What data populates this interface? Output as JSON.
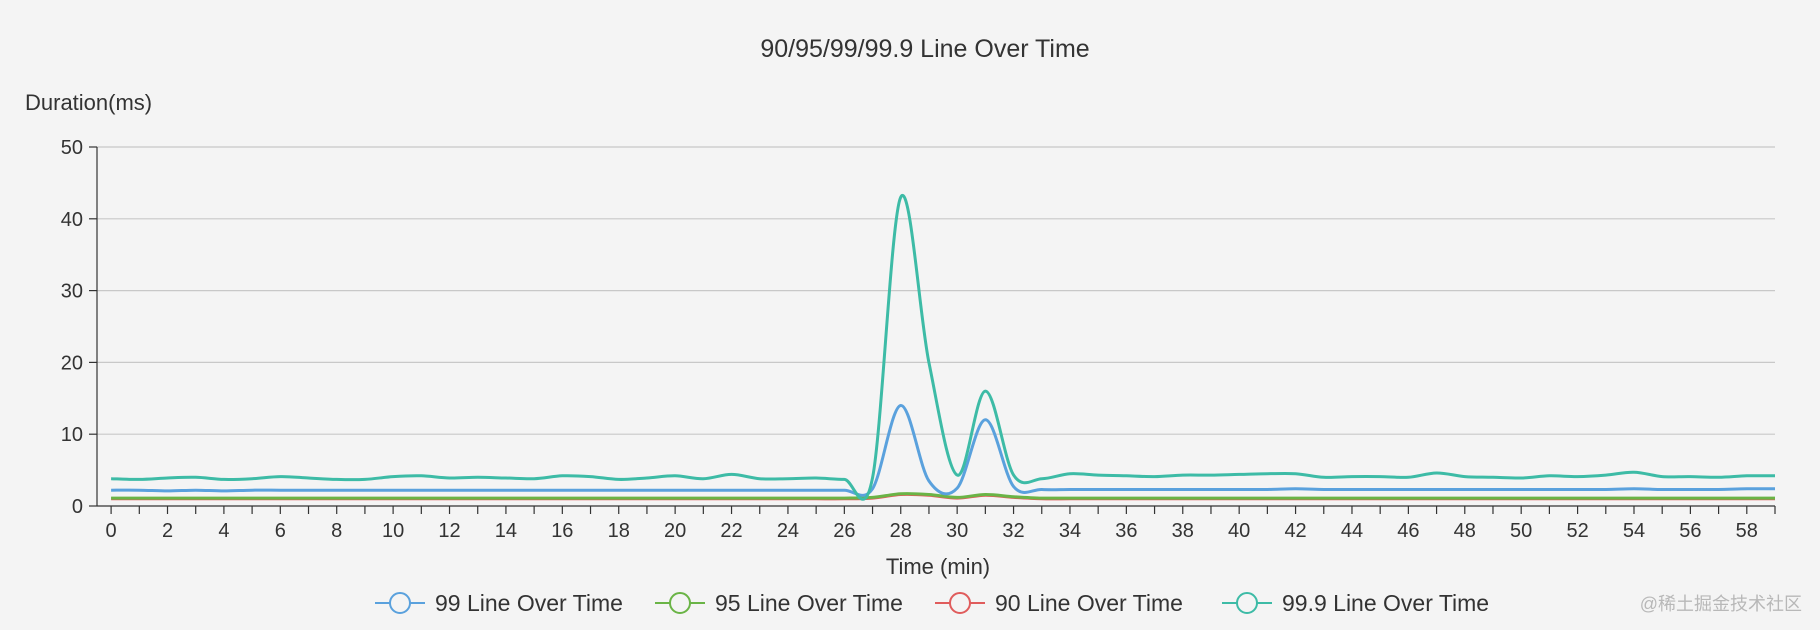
{
  "chart_data": {
    "type": "line",
    "title": "90/95/99/99.9 Line Over Time",
    "xlabel": "Time (min)",
    "ylabel": "Duration(ms)",
    "ylim": [
      0,
      50
    ],
    "yticks": [
      0,
      10,
      20,
      30,
      40,
      50
    ],
    "xlim": [
      -0.5,
      59
    ],
    "xticks": [
      0,
      2,
      4,
      6,
      8,
      10,
      12,
      14,
      16,
      18,
      20,
      22,
      24,
      26,
      28,
      30,
      32,
      34,
      36,
      38,
      40,
      42,
      44,
      46,
      48,
      50,
      52,
      54,
      56,
      58
    ],
    "grid": true,
    "legend_position": "bottom",
    "x": [
      0,
      1,
      2,
      3,
      4,
      5,
      6,
      7,
      8,
      9,
      10,
      11,
      12,
      13,
      14,
      15,
      16,
      17,
      18,
      19,
      20,
      21,
      22,
      23,
      24,
      25,
      26,
      27,
      28,
      29,
      30,
      31,
      32,
      33,
      34,
      35,
      36,
      37,
      38,
      39,
      40,
      41,
      42,
      43,
      44,
      45,
      46,
      47,
      48,
      49,
      50,
      51,
      52,
      53,
      54,
      55,
      56,
      57,
      58,
      59
    ],
    "series": [
      {
        "name": "99 Line Over Time",
        "color": "#5aa1dd",
        "values": [
          2.2,
          2.2,
          2.1,
          2.2,
          2.1,
          2.2,
          2.2,
          2.2,
          2.2,
          2.2,
          2.2,
          2.2,
          2.2,
          2.2,
          2.2,
          2.2,
          2.2,
          2.2,
          2.2,
          2.2,
          2.2,
          2.2,
          2.2,
          2.2,
          2.2,
          2.2,
          2.2,
          2.4,
          14.0,
          3.5,
          2.5,
          12.0,
          2.7,
          2.3,
          2.3,
          2.3,
          2.3,
          2.3,
          2.3,
          2.3,
          2.3,
          2.3,
          2.4,
          2.3,
          2.3,
          2.3,
          2.3,
          2.3,
          2.3,
          2.3,
          2.3,
          2.3,
          2.3,
          2.3,
          2.4,
          2.3,
          2.3,
          2.3,
          2.4,
          2.4
        ]
      },
      {
        "name": "95 Line Over Time",
        "color": "#6ab446",
        "values": [
          1.1,
          1.1,
          1.1,
          1.1,
          1.1,
          1.1,
          1.1,
          1.1,
          1.1,
          1.1,
          1.1,
          1.1,
          1.1,
          1.1,
          1.1,
          1.1,
          1.1,
          1.1,
          1.1,
          1.1,
          1.1,
          1.1,
          1.1,
          1.1,
          1.1,
          1.1,
          1.1,
          1.2,
          1.7,
          1.6,
          1.2,
          1.6,
          1.3,
          1.1,
          1.1,
          1.1,
          1.1,
          1.1,
          1.1,
          1.1,
          1.1,
          1.1,
          1.1,
          1.1,
          1.1,
          1.1,
          1.1,
          1.1,
          1.1,
          1.1,
          1.1,
          1.1,
          1.1,
          1.1,
          1.1,
          1.1,
          1.1,
          1.1,
          1.1,
          1.1
        ]
      },
      {
        "name": "90 Line Over Time",
        "color": "#e05c5c",
        "values": [
          1.0,
          1.0,
          1.0,
          1.0,
          1.0,
          1.0,
          1.0,
          1.0,
          1.0,
          1.0,
          1.0,
          1.0,
          1.0,
          1.0,
          1.0,
          1.0,
          1.0,
          1.0,
          1.0,
          1.0,
          1.0,
          1.0,
          1.0,
          1.0,
          1.0,
          1.0,
          1.0,
          1.1,
          1.6,
          1.5,
          1.1,
          1.5,
          1.2,
          1.0,
          1.0,
          1.0,
          1.0,
          1.0,
          1.0,
          1.0,
          1.0,
          1.0,
          1.0,
          1.0,
          1.0,
          1.0,
          1.0,
          1.0,
          1.0,
          1.0,
          1.0,
          1.0,
          1.0,
          1.0,
          1.0,
          1.0,
          1.0,
          1.0,
          1.0,
          1.0
        ]
      },
      {
        "name": "99.9 Line Over Time",
        "color": "#3dbba6",
        "values": [
          3.8,
          3.7,
          3.9,
          4.0,
          3.7,
          3.8,
          4.1,
          3.9,
          3.7,
          3.7,
          4.1,
          4.2,
          3.9,
          4.0,
          3.9,
          3.8,
          4.2,
          4.1,
          3.7,
          3.9,
          4.2,
          3.8,
          4.4,
          3.8,
          3.8,
          3.9,
          3.7,
          3.9,
          43.0,
          20.0,
          4.3,
          16.0,
          4.3,
          3.8,
          4.5,
          4.3,
          4.2,
          4.1,
          4.3,
          4.3,
          4.4,
          4.5,
          4.5,
          4.0,
          4.1,
          4.1,
          4.0,
          4.6,
          4.1,
          4.0,
          3.9,
          4.2,
          4.1,
          4.3,
          4.7,
          4.1,
          4.1,
          4.0,
          4.2,
          4.2
        ]
      }
    ]
  },
  "watermark": "@稀土掘金技术社区"
}
